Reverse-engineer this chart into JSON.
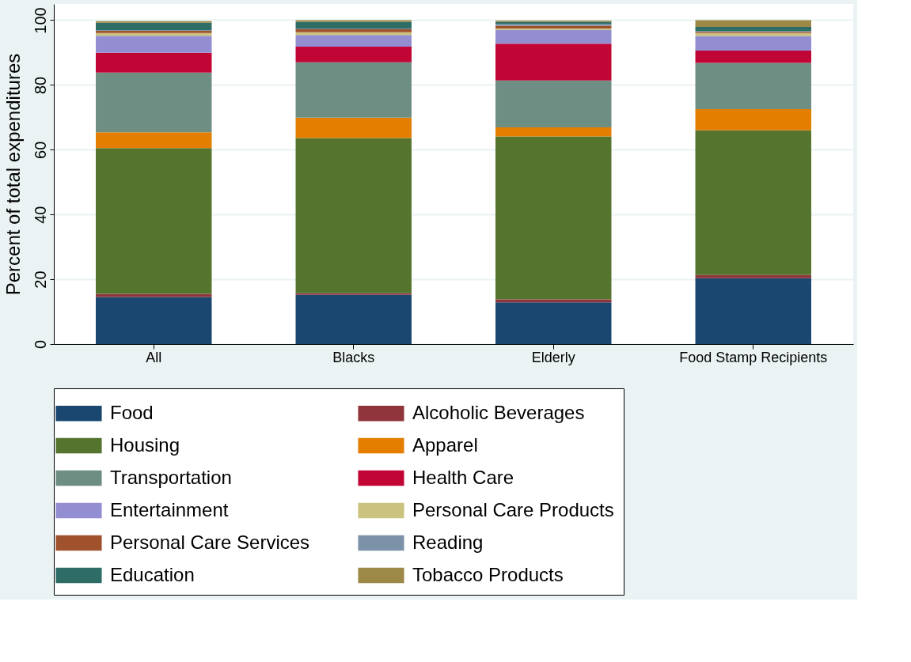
{
  "chart_data": {
    "type": "bar",
    "stacked": true,
    "ylabel": "Percent of total expenditures",
    "categories": [
      "All",
      "Blacks",
      "Elderly",
      "Food Stamp Recipients"
    ],
    "ylim": [
      0,
      105
    ],
    "yticks": [
      0,
      20,
      40,
      60,
      80,
      100
    ],
    "grid": "y",
    "legend": "bottom",
    "series": [
      {
        "name": "Food",
        "color": "#1a476f",
        "values": [
          14.5,
          15.2,
          12.9,
          20.3
        ]
      },
      {
        "name": "Alcoholic Beverages",
        "color": "#90353b",
        "values": [
          1.0,
          0.5,
          0.9,
          1.0
        ]
      },
      {
        "name": "Housing",
        "color": "#55752f",
        "values": [
          45.0,
          47.9,
          50.3,
          44.7
        ]
      },
      {
        "name": "Apparel",
        "color": "#e37e00",
        "values": [
          4.9,
          6.3,
          2.8,
          6.5
        ]
      },
      {
        "name": "Transportation",
        "color": "#6e8e84",
        "values": [
          18.4,
          17.1,
          14.5,
          14.3
        ]
      },
      {
        "name": "Health Care",
        "color": "#c10534",
        "values": [
          6.1,
          4.8,
          11.3,
          3.8
        ]
      },
      {
        "name": "Entertainment",
        "color": "#938dd2",
        "values": [
          5.3,
          3.6,
          4.3,
          4.5
        ]
      },
      {
        "name": "Personal Care Products",
        "color": "#cac27e",
        "values": [
          0.8,
          0.9,
          0.4,
          0.9
        ]
      },
      {
        "name": "Personal Care Services",
        "color": "#a0522d",
        "values": [
          0.7,
          0.9,
          0.9,
          0.4
        ]
      },
      {
        "name": "Reading",
        "color": "#7b92a8",
        "values": [
          0.2,
          0.2,
          0.5,
          0.2
        ]
      },
      {
        "name": "Education",
        "color": "#2d6d66",
        "values": [
          2.3,
          2.1,
          0.7,
          1.3
        ]
      },
      {
        "name": "Tobacco Products",
        "color": "#9c8847",
        "values": [
          0.5,
          0.5,
          0.4,
          2.1
        ]
      }
    ]
  }
}
